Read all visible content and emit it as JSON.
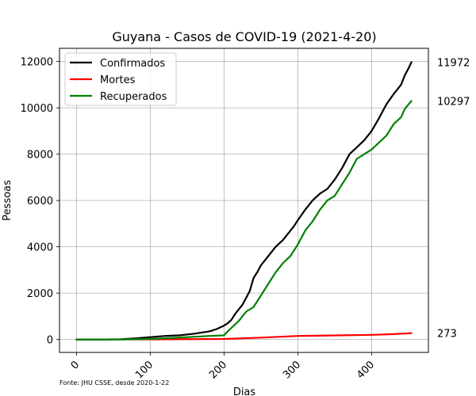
{
  "chart_data": {
    "type": "line",
    "title": "Guyana - Casos de COVID-19 (2021-4-20)",
    "xlabel": "Dias",
    "ylabel": "Pessoas",
    "xlim": [
      -23,
      477
    ],
    "ylim": [
      -560,
      12570
    ],
    "xticks": [
      0,
      100,
      200,
      300,
      400
    ],
    "yticks": [
      0,
      2000,
      4000,
      6000,
      8000,
      10000,
      12000
    ],
    "grid": true,
    "legend_position": "top-left",
    "source_note": "Fonte: JHU CSSE, desde 2020-1-22",
    "series": [
      {
        "name": "Confirmados",
        "color": "#000000",
        "end_value": 11972,
        "end_label": "11972",
        "x": [
          0,
          40,
          60,
          80,
          100,
          120,
          140,
          160,
          180,
          190,
          200,
          205,
          210,
          215,
          220,
          225,
          230,
          235,
          240,
          245,
          250,
          260,
          270,
          280,
          290,
          295,
          300,
          310,
          320,
          330,
          340,
          350,
          360,
          370,
          380,
          390,
          400,
          410,
          420,
          430,
          440,
          445,
          450,
          454
        ],
        "y": [
          0,
          0,
          10,
          50,
          100,
          150,
          180,
          250,
          350,
          450,
          600,
          700,
          850,
          1100,
          1300,
          1500,
          1800,
          2100,
          2650,
          2900,
          3200,
          3600,
          4000,
          4300,
          4700,
          4900,
          5150,
          5600,
          6000,
          6300,
          6500,
          6900,
          7400,
          8000,
          8300,
          8600,
          9000,
          9550,
          10150,
          10600,
          11000,
          11400,
          11700,
          11972
        ]
      },
      {
        "name": "Mortes",
        "color": "#ff0000",
        "end_value": 273,
        "end_label": "273",
        "x": [
          0,
          100,
          200,
          250,
          300,
          350,
          400,
          430,
          454
        ],
        "y": [
          0,
          5,
          20,
          80,
          150,
          175,
          200,
          230,
          273
        ]
      },
      {
        "name": "Recuperados",
        "color": "#008000",
        "end_value": 10297,
        "end_label": "10297",
        "x": [
          0,
          60,
          100,
          150,
          180,
          200,
          205,
          210,
          220,
          230,
          240,
          250,
          260,
          270,
          280,
          290,
          300,
          310,
          320,
          330,
          340,
          350,
          360,
          370,
          380,
          390,
          400,
          410,
          420,
          430,
          440,
          445,
          450,
          454
        ],
        "y": [
          0,
          0,
          20,
          100,
          150,
          180,
          350,
          500,
          800,
          1200,
          1400,
          1900,
          2400,
          2900,
          3300,
          3600,
          4100,
          4700,
          5100,
          5600,
          6000,
          6200,
          6700,
          7200,
          7800,
          8000,
          8200,
          8500,
          8800,
          9300,
          9600,
          9950,
          10150,
          10297
        ]
      }
    ]
  }
}
